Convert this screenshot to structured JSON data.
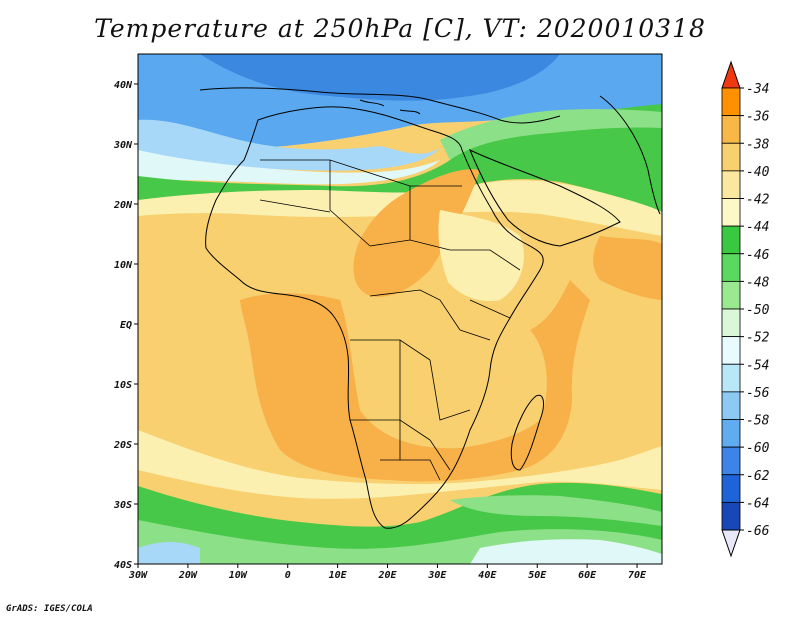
{
  "title": "Temperature at 250hPa [C], VT: 2020010318",
  "credit": "GrADS: IGES/COLA",
  "map": {
    "lon_range": [
      -30,
      75
    ],
    "lat_range": [
      -40,
      45
    ],
    "lat_ticks": [
      "40N",
      "30N",
      "20N",
      "10N",
      "EQ",
      "10S",
      "20S",
      "30S",
      "40S"
    ],
    "lon_ticks": [
      "30W",
      "20W",
      "10W",
      "0",
      "10E",
      "20E",
      "30E",
      "40E",
      "50E",
      "60E",
      "70E"
    ]
  },
  "colorbar": {
    "labels": [
      "-34",
      "-36",
      "-38",
      "-40",
      "-42",
      "-44",
      "-46",
      "-48",
      "-50",
      "-52",
      "-54",
      "-56",
      "-58",
      "-60",
      "-62",
      "-64",
      "-66"
    ],
    "colors": [
      "#ff6000",
      "#ff9000",
      "#f8b848",
      "#f8d070",
      "#fae7a0",
      "#fcf8c8",
      "#3ac840",
      "#5ad860",
      "#9ae890",
      "#d8f8d8",
      "#e8fcff",
      "#b8e8f8",
      "#8ccaf4",
      "#60acf0",
      "#3c84e8",
      "#1e64d8",
      "#1848b8",
      "#0a1a7a"
    ],
    "top_arrow_color": "#f03810",
    "bottom_arrow_color": "#e8e8f8"
  },
  "palette": {
    "ocean_warm": "#f8c060",
    "warm": "#f8b048",
    "yellow": "#f8d878",
    "pale_yellow": "#fcf0b0",
    "green": "#48c848",
    "light_green": "#8ce088",
    "cyan_light": "#e0f8f8",
    "blue_light": "#a8d8f8",
    "blue": "#5aa8f0",
    "blue_dark": "#3a88e0"
  }
}
